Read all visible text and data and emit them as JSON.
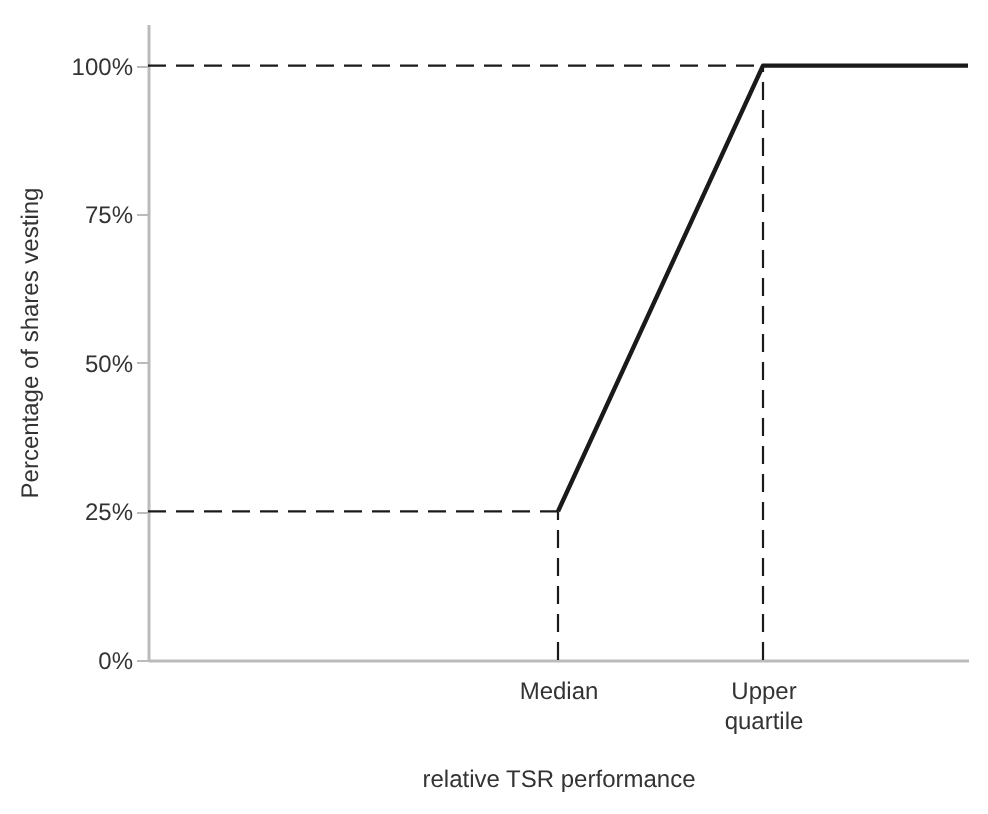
{
  "chart_data": {
    "type": "line",
    "xlabel": "relative TSR performance",
    "ylabel": "Percentage of shares vesting",
    "categories": [
      null,
      null,
      "Median",
      "Upper quartile",
      null
    ],
    "series": [
      {
        "color": "#1a1a1a",
        "values": [
          null,
          null,
          25,
          100,
          100
        ]
      }
    ],
    "ylim": [
      0,
      107
    ],
    "yticks": [
      {
        "value": 0,
        "label": "0%"
      },
      {
        "value": 25,
        "label": "25%"
      },
      {
        "value": 50,
        "label": "50%"
      },
      {
        "value": 75,
        "label": "75%"
      },
      {
        "value": 100,
        "label": "100%"
      }
    ],
    "ref_lines": [
      {
        "axis": "y",
        "value": 100,
        "line_style": "dashed"
      },
      {
        "axis": "y",
        "value": 25,
        "line_style": "dashed"
      },
      {
        "axis": "x",
        "value": "Median",
        "line_style": "dashed"
      },
      {
        "axis": "x",
        "value": "Upper quartile",
        "line_style": "dashed"
      }
    ],
    "marker": "none",
    "line_style": "solid"
  }
}
